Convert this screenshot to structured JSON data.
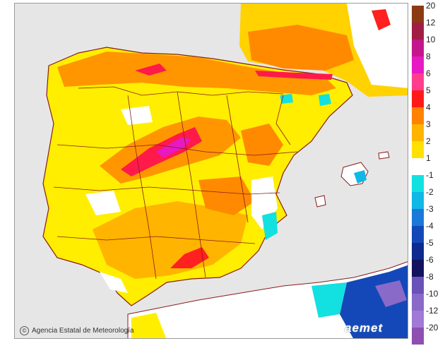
{
  "map": {
    "credit": "Agencia Estatal de Meteorología",
    "brand": "aemet",
    "colors": {
      "sea": "#e6e6e6",
      "land_base": "#ffee00",
      "border": "#8b1a1a",
      "coast": "#8b1a1a"
    }
  },
  "legend": {
    "items": [
      {
        "label": "20",
        "color": "#8b3a12"
      },
      {
        "label": "12",
        "color": "#a01d44"
      },
      {
        "label": "10",
        "color": "#c3168a"
      },
      {
        "label": "8",
        "color": "#e619c2"
      },
      {
        "label": "6",
        "color": "#ff3d8e"
      },
      {
        "label": "5",
        "color": "#ff1a1a"
      },
      {
        "label": "4",
        "color": "#ff8200"
      },
      {
        "label": "3",
        "color": "#ffb400"
      },
      {
        "label": "2",
        "color": "#ffe100"
      },
      {
        "label": "1",
        "color": "#ffffff"
      },
      {
        "label": "-1",
        "color": "#13e0e0"
      },
      {
        "label": "-2",
        "color": "#10b8e6"
      },
      {
        "label": "-3",
        "color": "#1a78d9"
      },
      {
        "label": "-4",
        "color": "#1448b8"
      },
      {
        "label": "-5",
        "color": "#0e2a8f"
      },
      {
        "label": "-6",
        "color": "#12125e"
      },
      {
        "label": "-8",
        "color": "#6b52b8"
      },
      {
        "label": "-10",
        "color": "#8a6ac8"
      },
      {
        "label": "-12",
        "color": "#a07ad6"
      },
      {
        "label": "-20",
        "color": "#8e4fb0"
      }
    ]
  }
}
